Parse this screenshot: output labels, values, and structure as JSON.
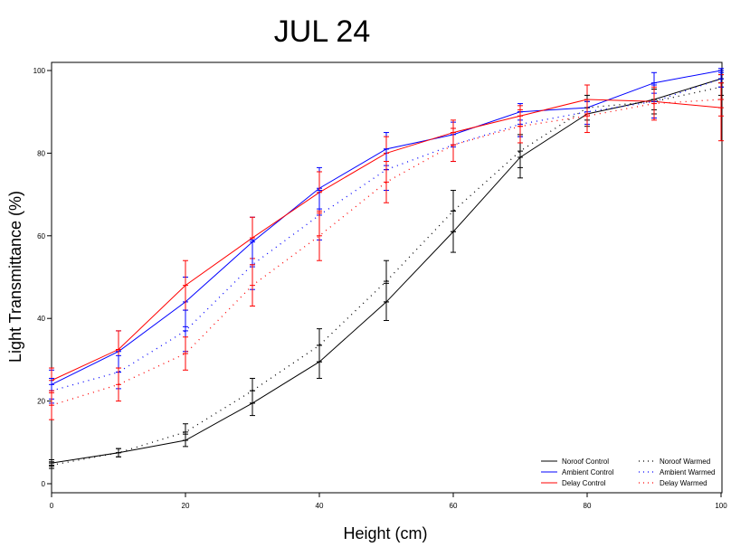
{
  "chart_data": {
    "type": "line",
    "title": "JUL 24",
    "xlabel": "Height (cm)",
    "ylabel": "Light Transmittance (%)",
    "xlim": [
      0,
      100
    ],
    "ylim": [
      0,
      100
    ],
    "xticks": [
      0,
      20,
      40,
      60,
      80,
      100
    ],
    "yticks": [
      0,
      20,
      40,
      60,
      80,
      100
    ],
    "x": [
      0,
      10,
      20,
      30,
      40,
      50,
      60,
      70,
      80,
      90,
      100
    ],
    "grid": false,
    "legend_position": "bottom-right",
    "series": [
      {
        "name": "Noroof Control",
        "color": "#000000",
        "style": "solid",
        "values": [
          5,
          7.5,
          10.5,
          19.5,
          29.5,
          44,
          61,
          79,
          89.5,
          93,
          98
        ],
        "error": [
          0.8,
          1,
          1.5,
          3,
          4,
          4.5,
          5,
          5,
          3,
          2.5,
          1
        ]
      },
      {
        "name": "Ambient Control",
        "color": "#0000ff",
        "style": "solid",
        "values": [
          24,
          32,
          44,
          58.5,
          71.5,
          81,
          84.5,
          90,
          91,
          97,
          100
        ],
        "error": [
          3.5,
          5,
          6,
          6,
          5,
          4,
          3,
          2,
          1.5,
          2.5,
          0.5
        ]
      },
      {
        "name": "Delay Control",
        "color": "#ff0000",
        "style": "solid",
        "values": [
          25,
          32.5,
          48,
          59.5,
          70.5,
          80,
          85,
          89,
          93,
          92.5,
          91
        ],
        "error": [
          3,
          4.5,
          6,
          5,
          5,
          4,
          3,
          2.5,
          3.5,
          4,
          8
        ]
      },
      {
        "name": "Noroof Warmed",
        "color": "#000000",
        "style": "dotted",
        "values": [
          4.5,
          7.5,
          12.5,
          22.5,
          33.5,
          49,
          66,
          80.5,
          91,
          92.5,
          96
        ],
        "error": [
          0.8,
          1,
          2,
          3,
          4,
          5,
          5,
          4,
          3,
          3,
          2
        ]
      },
      {
        "name": "Ambient Warmed",
        "color": "#0000ff",
        "style": "dotted",
        "values": [
          22.5,
          27,
          37,
          53,
          65,
          76,
          82,
          87,
          90,
          92.5,
          98
        ],
        "error": [
          3,
          4,
          5,
          6,
          6,
          5,
          4,
          3,
          3,
          4,
          2
        ]
      },
      {
        "name": "Delay Warmed",
        "color": "#ff0000",
        "style": "dotted",
        "values": [
          19,
          24,
          31.5,
          48,
          60,
          73,
          82,
          86.5,
          89,
          92,
          93
        ],
        "error": [
          3.5,
          4,
          4,
          5,
          6,
          5,
          4,
          4,
          4,
          4,
          4
        ]
      }
    ]
  }
}
